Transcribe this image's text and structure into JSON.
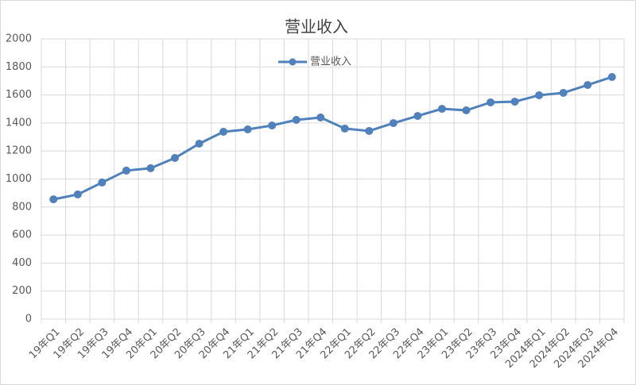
{
  "chart_data": {
    "type": "line",
    "title": "营业收入",
    "categories": [
      "19年Q1",
      "19年Q2",
      "19年Q3",
      "19年Q4",
      "20年Q1",
      "20年Q2",
      "20年Q3",
      "20年Q4",
      "21年Q1",
      "21年Q2",
      "21年Q3",
      "21年Q4",
      "22年Q1",
      "22年Q2",
      "22年Q3",
      "22年Q4",
      "23年Q1",
      "23年Q2",
      "23年Q3",
      "23年Q4",
      "2024年Q1",
      "2024年Q2",
      "2024年Q3",
      "2024年Q4"
    ],
    "series": [
      {
        "name": "营业收入",
        "color": "#4f81bd",
        "values": [
          855,
          890,
          975,
          1060,
          1077,
          1150,
          1252,
          1337,
          1354,
          1382,
          1422,
          1439,
          1360,
          1343,
          1399,
          1450,
          1501,
          1490,
          1547,
          1552,
          1598,
          1615,
          1671,
          1728
        ]
      }
    ],
    "ylim": [
      0,
      2000
    ],
    "yticks": [
      0,
      200,
      400,
      600,
      800,
      1000,
      1200,
      1400,
      1600,
      1800,
      2000
    ],
    "grid": true,
    "legend": "top"
  }
}
